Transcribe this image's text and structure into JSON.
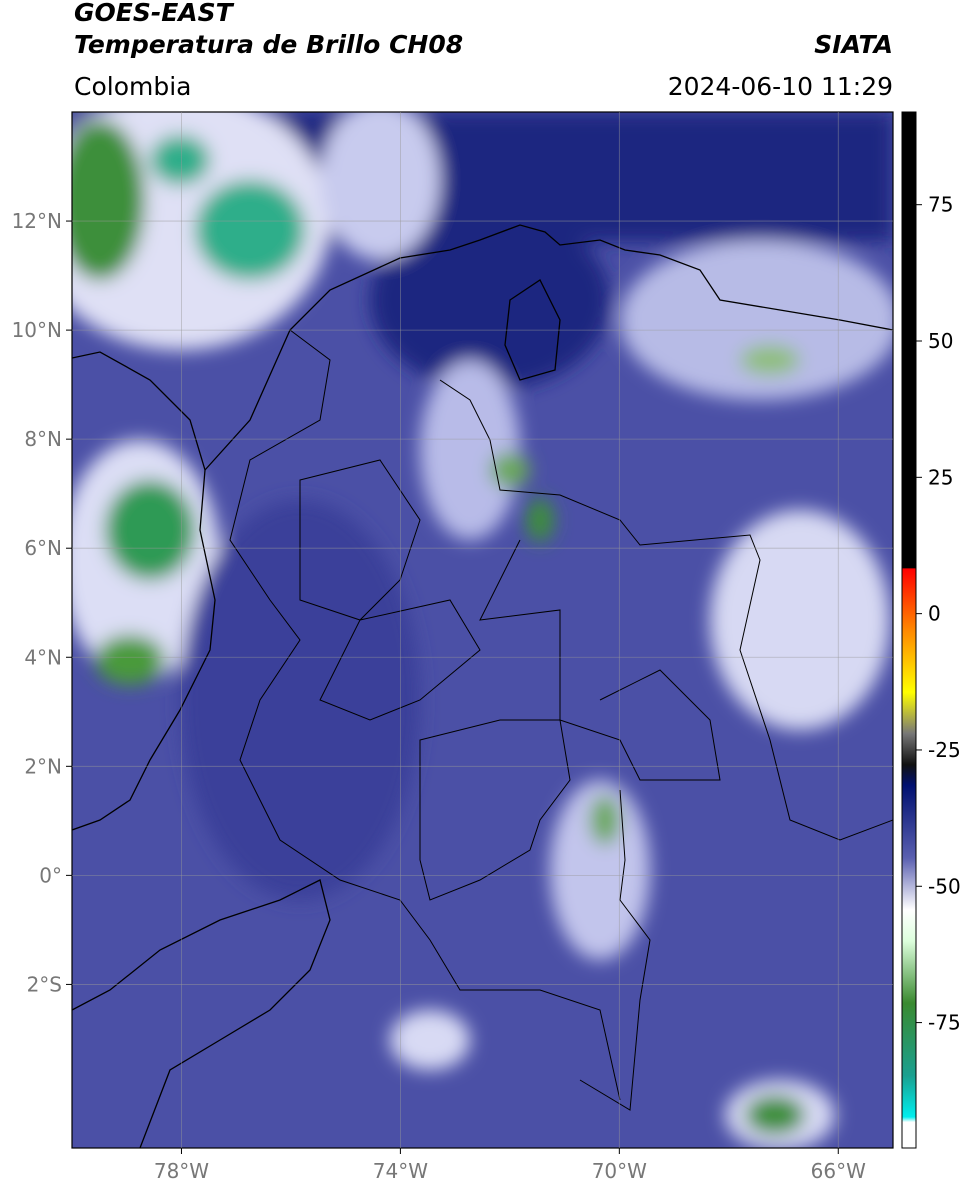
{
  "header": {
    "title": "GOES-EAST",
    "subtitle": "Temperatura de Brillo CH08",
    "source": "SIATA",
    "region": "Colombia",
    "datetime": "2024-06-10 11:29"
  },
  "map": {
    "lon_range": [
      -80,
      -65
    ],
    "lat_range": [
      -5,
      14
    ],
    "lon_ticks": [
      {
        "value": -78,
        "label": "78°W"
      },
      {
        "value": -74,
        "label": "74°W"
      },
      {
        "value": -70,
        "label": "70°W"
      },
      {
        "value": -66,
        "label": "66°W"
      }
    ],
    "lat_ticks": [
      {
        "value": 12,
        "label": "12°N"
      },
      {
        "value": 10,
        "label": "10°N"
      },
      {
        "value": 8,
        "label": "8°N"
      },
      {
        "value": 6,
        "label": "6°N"
      },
      {
        "value": 4,
        "label": "4°N"
      },
      {
        "value": 2,
        "label": "2°N"
      },
      {
        "value": 0,
        "label": "0°"
      },
      {
        "value": -2,
        "label": "2°S"
      }
    ]
  },
  "colorbar": {
    "range": [
      -98,
      92
    ],
    "ticks": [
      75,
      50,
      25,
      0,
      -25,
      -50,
      -75
    ]
  }
}
